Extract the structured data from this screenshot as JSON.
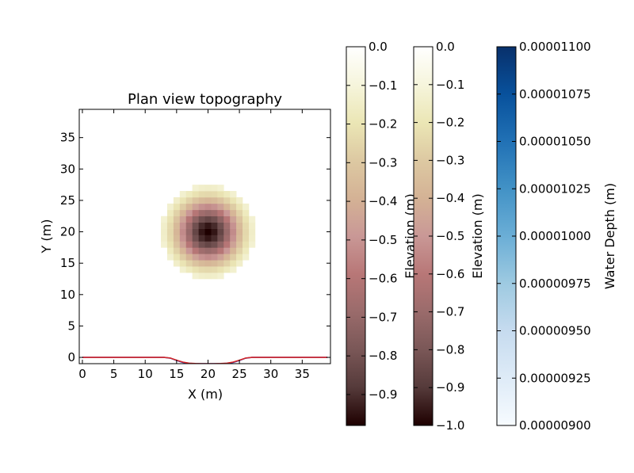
{
  "chart_data": [
    {
      "type": "heatmap",
      "title": "Plan view topography",
      "xlabel": "X (m)",
      "ylabel": "Y (m)",
      "xlim": [
        -0.5,
        39.5
      ],
      "ylim": [
        -1,
        39.5
      ],
      "xticks": [
        "0",
        "5",
        "10",
        "15",
        "20",
        "25",
        "30",
        "35"
      ],
      "yticks": [
        "0",
        "5",
        "10",
        "15",
        "20",
        "25",
        "30",
        "35"
      ],
      "xtick_values": [
        0,
        5,
        10,
        15,
        20,
        25,
        30,
        35
      ],
      "ytick_values": [
        0,
        5,
        10,
        15,
        20,
        25,
        30,
        35
      ],
      "grid": "off",
      "colormap": "pink",
      "surface": {
        "shape": "gaussian_depression",
        "center_x": 20,
        "center_y": 20,
        "min_elevation": -1.0,
        "visible_radius": 7
      },
      "series": [
        {
          "color": "#d62728",
          "x": [
            0,
            5,
            10,
            13,
            14,
            15,
            16,
            17,
            18,
            19,
            20,
            21,
            22,
            23,
            24,
            25,
            26,
            27,
            30,
            35,
            39
          ],
          "y": [
            0,
            0,
            0,
            0,
            -0.1,
            -0.45,
            -0.75,
            -0.92,
            -0.98,
            -1.0,
            -1.0,
            -1.0,
            -0.98,
            -0.92,
            -0.75,
            -0.45,
            -0.1,
            0,
            0,
            0,
            0
          ]
        },
        {
          "color": "#1f3fbf",
          "x": [
            0,
            5,
            10,
            13,
            14,
            15,
            16,
            17,
            18,
            19,
            20,
            21,
            22,
            23,
            24,
            25,
            26,
            27,
            30,
            35,
            39
          ],
          "y": [
            0,
            0,
            0,
            0,
            -0.12,
            -0.5,
            -0.8,
            -0.95,
            -1.0,
            -1.0,
            -1.0,
            -1.0,
            -1.0,
            -0.95,
            -0.8,
            -0.5,
            -0.12,
            0,
            0,
            0,
            0
          ]
        }
      ]
    },
    {
      "type": "colorbar",
      "colormap": "pink",
      "range": [
        -0.98,
        0.0
      ],
      "ticks": [
        "0.0",
        "−0.1",
        "−0.2",
        "−0.3",
        "−0.4",
        "−0.5",
        "−0.6",
        "−0.7",
        "−0.8",
        "−0.9"
      ],
      "tick_values": [
        0.0,
        -0.1,
        -0.2,
        -0.3,
        -0.4,
        -0.5,
        -0.6,
        -0.7,
        -0.8,
        -0.9
      ],
      "label": "Elevation (m)"
    },
    {
      "type": "colorbar",
      "colormap": "pink",
      "range": [
        -1.0,
        0.0
      ],
      "ticks": [
        "0.0",
        "−0.1",
        "−0.2",
        "−0.3",
        "−0.4",
        "−0.5",
        "−0.6",
        "−0.7",
        "−0.8",
        "−0.9",
        "−1.0"
      ],
      "tick_values": [
        0.0,
        -0.1,
        -0.2,
        -0.3,
        -0.4,
        -0.5,
        -0.6,
        -0.7,
        -0.8,
        -0.9,
        -1.0
      ],
      "label": "Elevation (m)"
    },
    {
      "type": "colorbar",
      "colormap": "Blues",
      "range": [
        9e-06,
        1.1e-05
      ],
      "ticks": [
        "0.00001100",
        "0.00001075",
        "0.00001050",
        "0.00001025",
        "0.00001000",
        "0.00000975",
        "0.00000950",
        "0.00000925",
        "0.00000900"
      ],
      "tick_values": [
        1.1e-05,
        1.075e-05,
        1.05e-05,
        1.025e-05,
        1e-05,
        9.75e-06,
        9.5e-06,
        9.25e-06,
        9e-06
      ],
      "label": "Water Depth (m)"
    }
  ]
}
